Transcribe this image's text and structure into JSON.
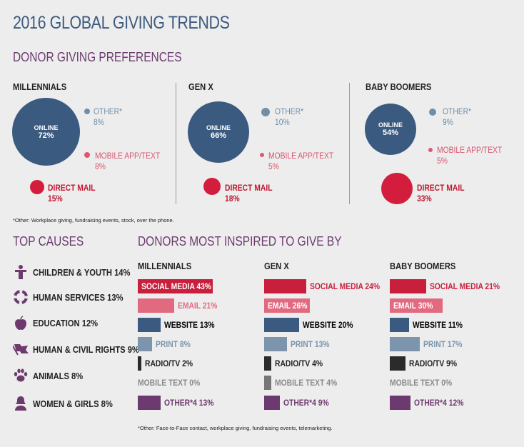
{
  "title": "2016 GLOBAL GIVING TRENDS",
  "preferences": {
    "heading": "DONOR GIVING PREFERENCES",
    "online_label": "ONLINE",
    "other_label": "OTHER*",
    "mobile_label": "MOBILE APP/TEXT",
    "mail_label": "DIRECT MAIL",
    "groups": [
      {
        "name": "MILLENNIALS",
        "online": "72%",
        "other": "8%",
        "mobile": "8%",
        "mail": "15%"
      },
      {
        "name": "GEN X",
        "online": "66%",
        "other": "10%",
        "mobile": "5%",
        "mail": "18%"
      },
      {
        "name": "BABY BOOMERS",
        "online": "54%",
        "other": "9%",
        "mobile": "5%",
        "mail": "33%"
      }
    ],
    "footnote": "*Other: Workplace giving, fundraising events, stock, over the phone."
  },
  "causes": {
    "heading": "TOP CAUSES",
    "items": [
      {
        "label": "CHILDREN & YOUTH 14%",
        "icon": "people-icon",
        "value": 14
      },
      {
        "label": "HUMAN SERVICES 13%",
        "icon": "lifebuoy-icon",
        "value": 13
      },
      {
        "label": "EDUCATION 12%",
        "icon": "apple-icon",
        "value": 12
      },
      {
        "label": "HUMAN & CIVIL RIGHTS 9%",
        "icon": "flag-icon",
        "value": 9
      },
      {
        "label": "ANIMALS 8%",
        "icon": "paw-icon",
        "value": 8
      },
      {
        "label": "WOMEN & GIRLS 8%",
        "icon": "woman-icon",
        "value": 8
      }
    ]
  },
  "inspired": {
    "heading": "DONORS MOST INSPIRED TO GIVE BY",
    "colors": {
      "social": "#c81f3c",
      "email": "#e26a80",
      "website": "#3b5a80",
      "print": "#7c95ad",
      "radio": "#2b2b2b",
      "mobile": "#777777",
      "other": "#6c3a6e"
    },
    "groups": [
      {
        "name": "MILLENNIALS",
        "rows": [
          {
            "key": "social",
            "text": "SOCIAL MEDIA 43%",
            "value": 43
          },
          {
            "key": "email",
            "text": "EMAIL 21%",
            "value": 21
          },
          {
            "key": "website",
            "text": "WEBSITE 13%",
            "value": 13
          },
          {
            "key": "print",
            "text": "PRINT 8%",
            "value": 8
          },
          {
            "key": "radio",
            "text": "RADIO/TV 2%",
            "value": 2
          },
          {
            "key": "mobile",
            "text": "MOBILE TEXT 0%",
            "value": 0
          },
          {
            "key": "other",
            "text": "OTHER*4 13%",
            "value": 13
          }
        ]
      },
      {
        "name": "GEN X",
        "rows": [
          {
            "key": "social",
            "text": "SOCIAL MEDIA 24%",
            "value": 24
          },
          {
            "key": "email",
            "text": "EMAIL 26%",
            "value": 26
          },
          {
            "key": "website",
            "text": "WEBSITE 20%",
            "value": 20
          },
          {
            "key": "print",
            "text": "PRINT 13%",
            "value": 13
          },
          {
            "key": "radio",
            "text": "RADIO/TV 4%",
            "value": 4
          },
          {
            "key": "mobile",
            "text": "MOBILE TEXT 4%",
            "value": 4
          },
          {
            "key": "other",
            "text": "OTHER*4 9%",
            "value": 9
          }
        ]
      },
      {
        "name": "BABY BOOMERS",
        "rows": [
          {
            "key": "social",
            "text": "SOCIAL MEDIA 21%",
            "value": 21
          },
          {
            "key": "email",
            "text": "EMAIL 30%",
            "value": 30
          },
          {
            "key": "website",
            "text": "WEBSITE 11%",
            "value": 11
          },
          {
            "key": "print",
            "text": "PRINT 17%",
            "value": 17
          },
          {
            "key": "radio",
            "text": "RADIO/TV 9%",
            "value": 9
          },
          {
            "key": "mobile",
            "text": "MOBILE TEXT 0%",
            "value": 0
          },
          {
            "key": "other",
            "text": "OTHER*4 12%",
            "value": 12
          }
        ]
      }
    ],
    "footnote": "*Other: Face-to-Face contact, workplace giving, fundraising events, telemarketing."
  }
}
